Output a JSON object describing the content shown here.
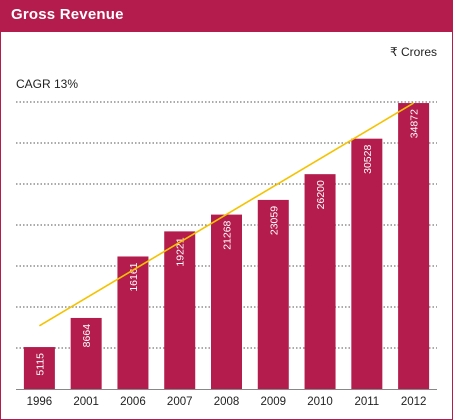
{
  "chart_data": {
    "type": "bar",
    "title": "Gross Revenue",
    "unit_label": "₹ Crores",
    "annotation": "CAGR 13%",
    "categories": [
      "1996",
      "2001",
      "2006",
      "2007",
      "2008",
      "2009",
      "2010",
      "2011",
      "2012"
    ],
    "values": [
      5115,
      8664,
      16161,
      19221,
      21268,
      23059,
      26200,
      30528,
      34872
    ],
    "ylim": [
      0,
      35000
    ],
    "grid": true,
    "trendline": {
      "from_category": "1996",
      "to_category": "2012",
      "y_start": 7700,
      "y_end": 34872
    },
    "colors": {
      "bar": "#b41c4d",
      "title_bar": "#b41c4d",
      "trendline": "#f5c200",
      "grid": "#555555",
      "axis": "#888888",
      "bar_text": "#ffffff"
    }
  }
}
